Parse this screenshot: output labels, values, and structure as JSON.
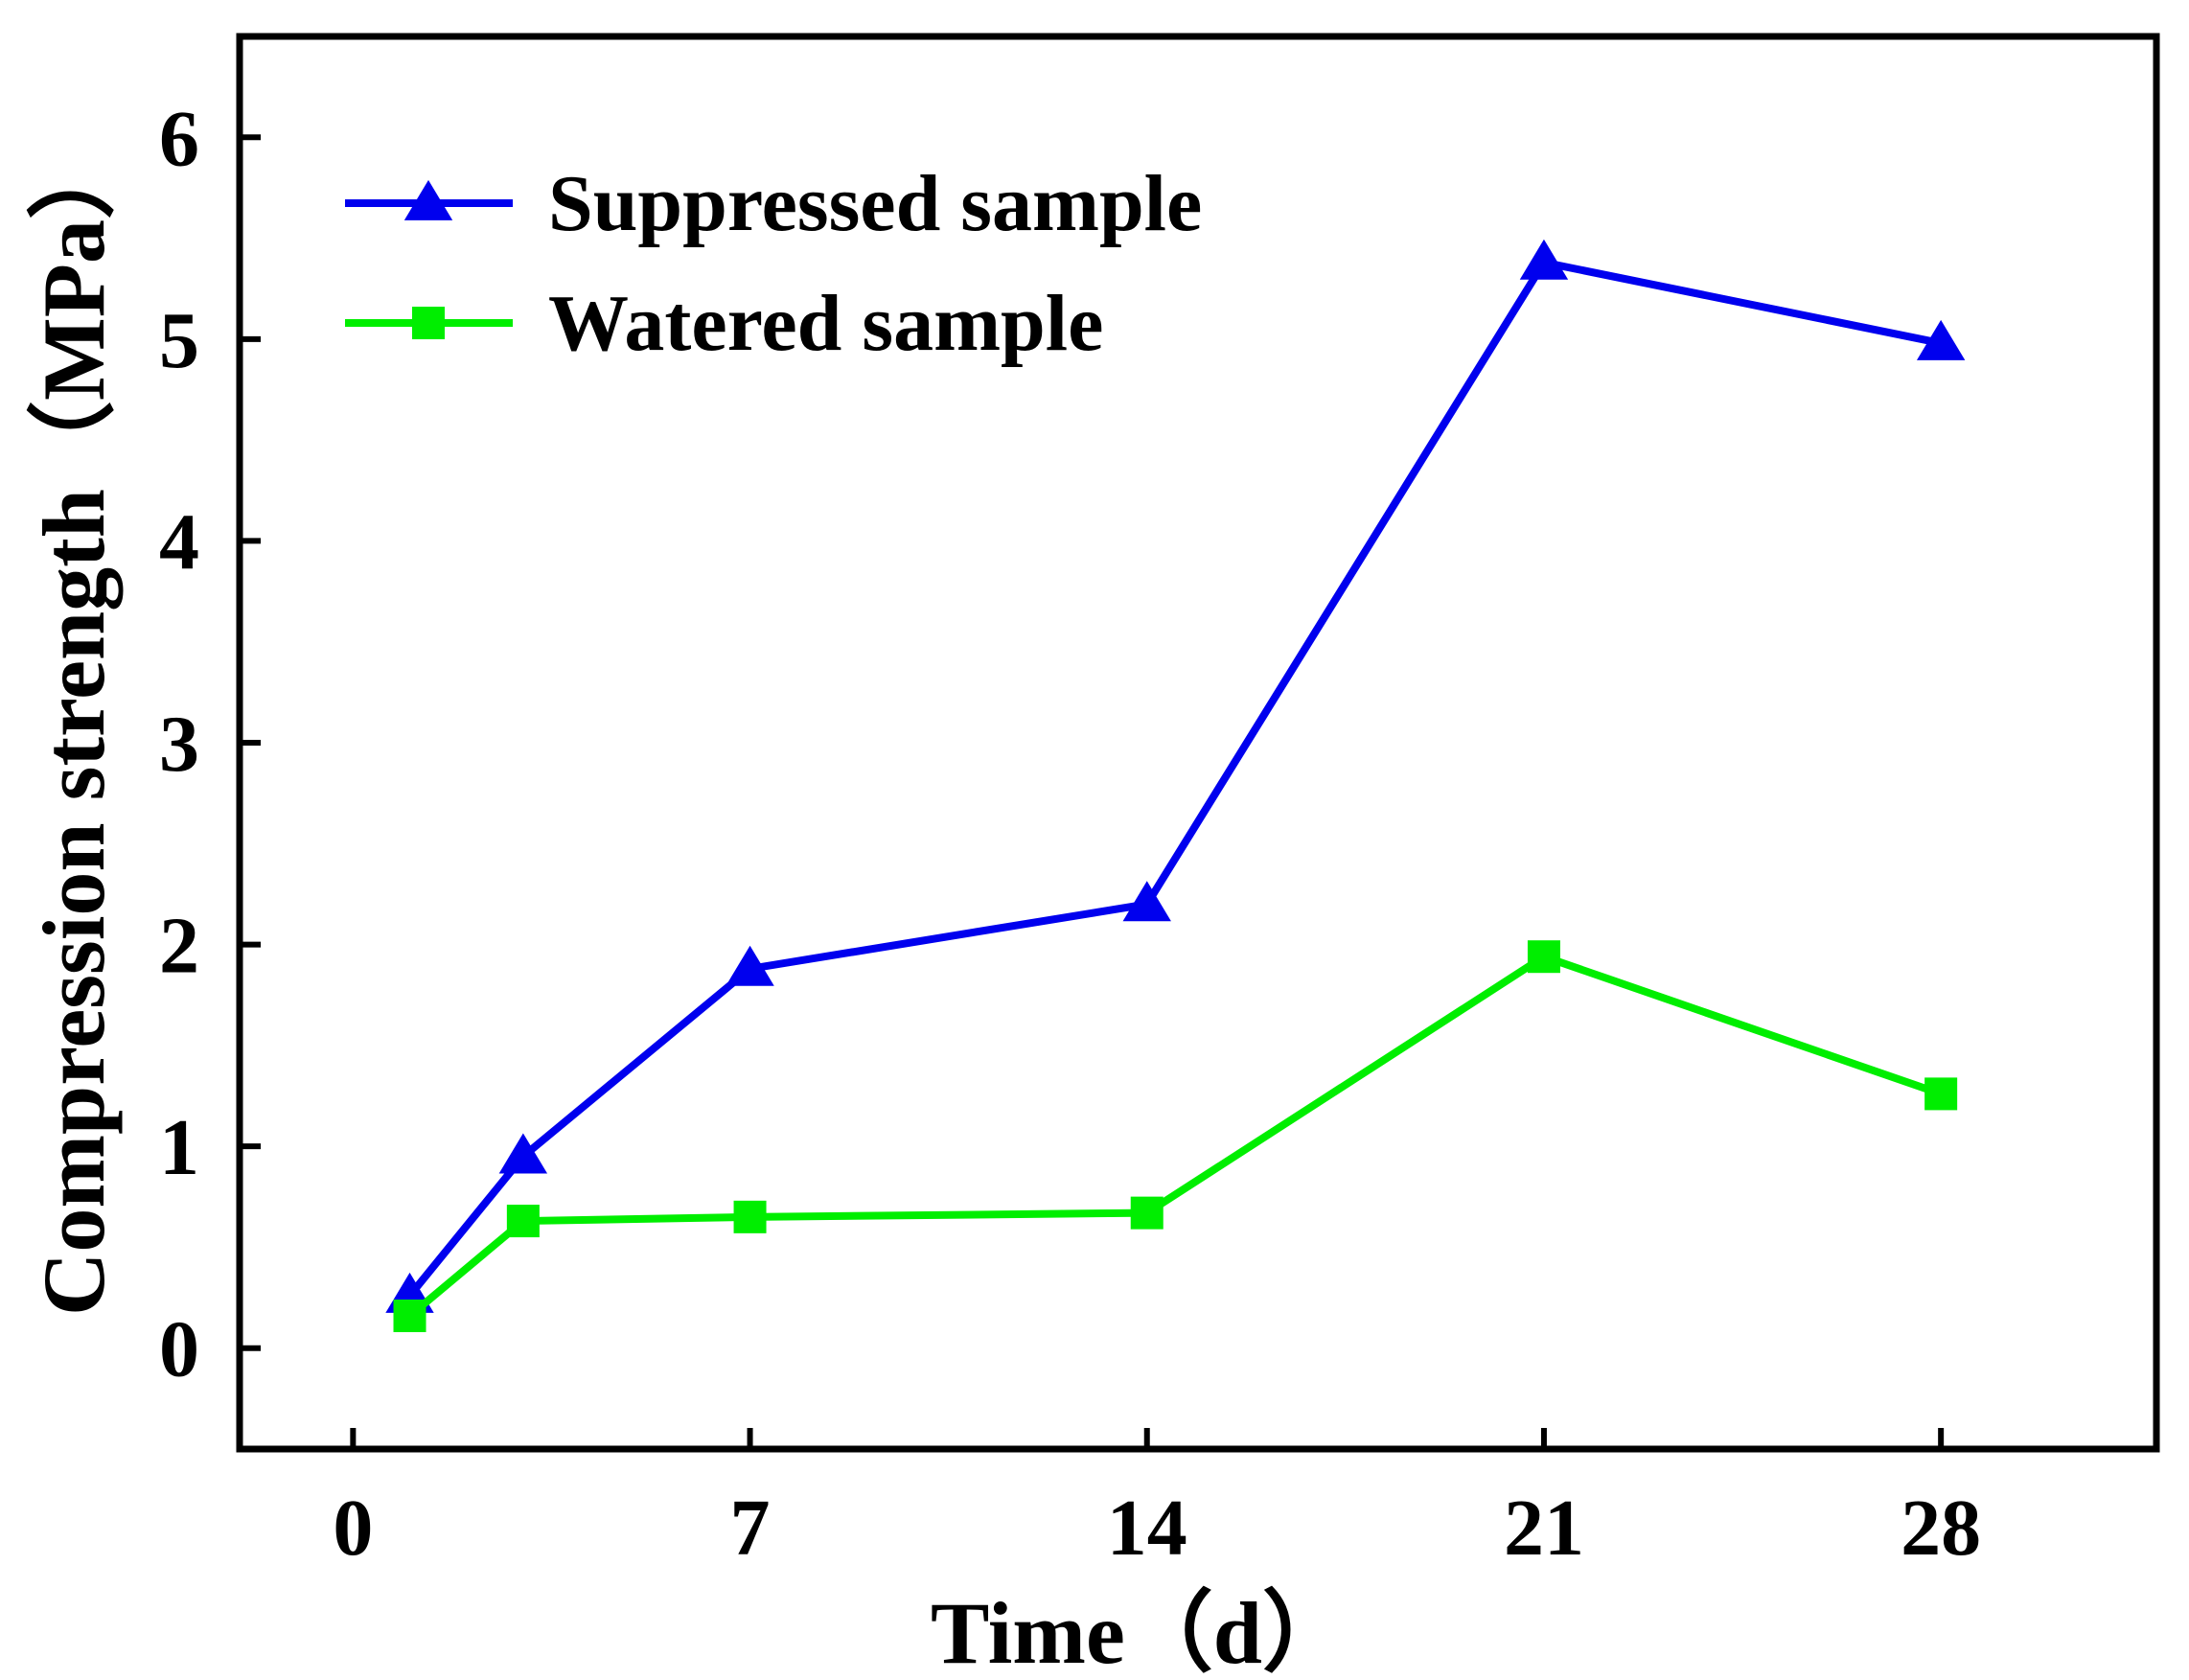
{
  "chart_data": {
    "type": "line",
    "title": "",
    "xlabel": "Time（d）",
    "ylabel": "Compression strength（MPa）",
    "xlim": [
      -2.0,
      31.8
    ],
    "ylim": [
      -0.5,
      6.5
    ],
    "xticks": [
      0,
      7,
      14,
      21,
      28
    ],
    "yticks": [
      0,
      1,
      2,
      3,
      4,
      5,
      6
    ],
    "grid": false,
    "legend_position": "top-left",
    "series": [
      {
        "name": "Suppressed sample",
        "color": "#0000ee",
        "marker": "triangle",
        "x": [
          1,
          3,
          7,
          14,
          21,
          28
        ],
        "y": [
          0.26,
          0.95,
          1.88,
          2.2,
          5.38,
          4.98
        ]
      },
      {
        "name": "Watered sample",
        "color": "#00ee00",
        "marker": "square",
        "x": [
          1,
          3,
          7,
          14,
          21,
          28
        ],
        "y": [
          0.16,
          0.63,
          0.65,
          0.67,
          1.94,
          1.26
        ]
      }
    ]
  }
}
